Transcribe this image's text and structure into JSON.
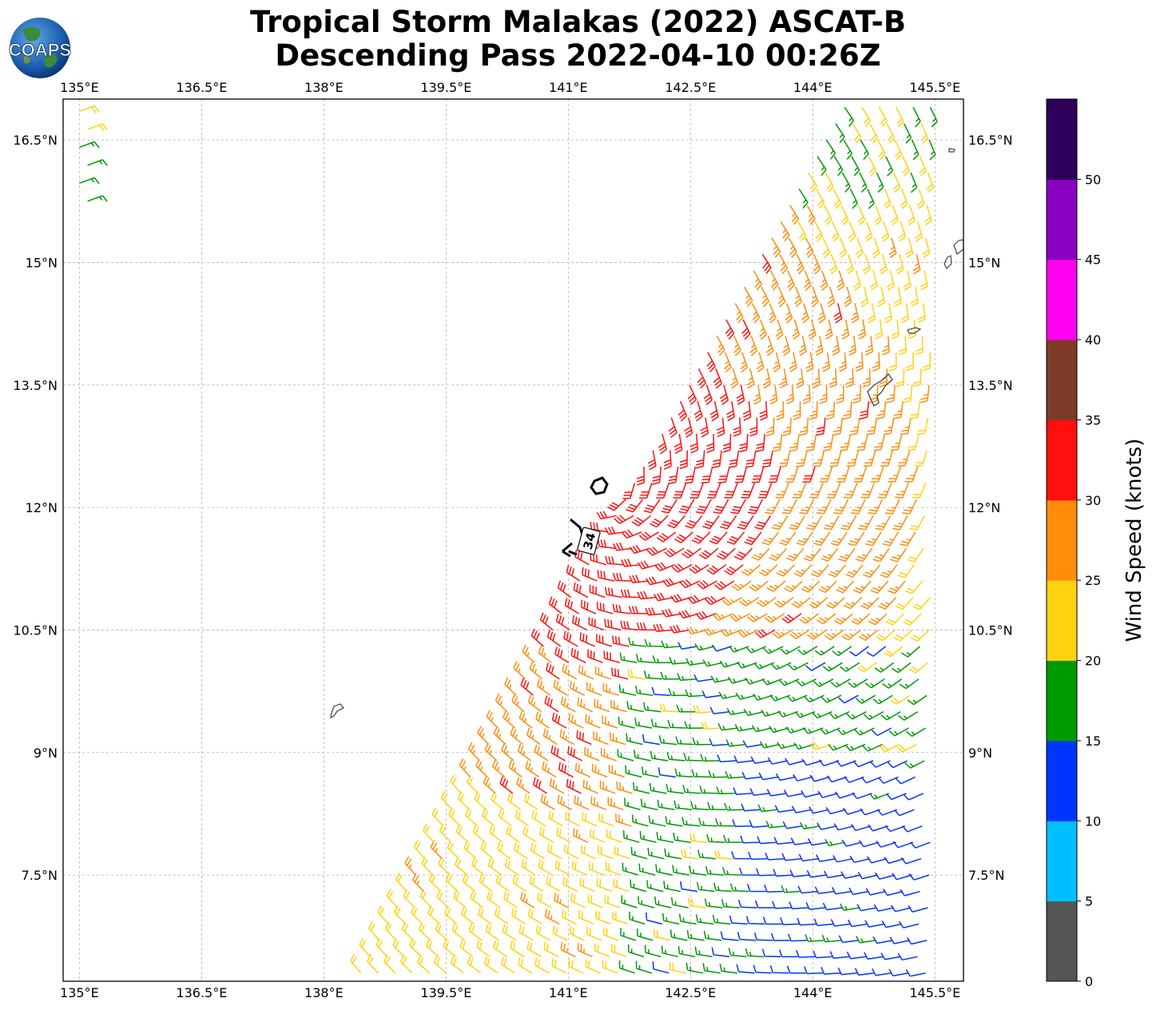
{
  "title": {
    "line1": "Tropical Storm Malakas (2022) ASCAT-B",
    "line2": "Descending Pass 2022-04-10 00:26Z"
  },
  "logo": {
    "text": "COAPS",
    "icon": "globe-logo-icon"
  },
  "map": {
    "lon_range": [
      134.8,
      145.85
    ],
    "lat_range": [
      6.2,
      17.0
    ],
    "lon_ticks": [
      "135°E",
      "136.5°E",
      "138°E",
      "139.5°E",
      "141°E",
      "142.5°E",
      "144°E",
      "145.5°E"
    ],
    "lon_tick_values": [
      135,
      136.5,
      138,
      139.5,
      141,
      142.5,
      144,
      145.5
    ],
    "lat_ticks": [
      "16.5°N",
      "15°N",
      "13.5°N",
      "12°N",
      "10.5°N",
      "9°N",
      "7.5°N"
    ],
    "lat_tick_values": [
      16.5,
      15,
      13.5,
      12,
      10.5,
      9,
      7.5
    ],
    "gridlines": true,
    "storm_center": {
      "lon": 141.35,
      "lat": 12.25
    },
    "wind_radius_label": "34",
    "colors": {
      "land_outline": "#444444",
      "grid": "#b0b0b0",
      "radius": "#000000"
    }
  },
  "colorbar": {
    "label": "Wind Speed (knots)",
    "ticks": [
      "0",
      "5",
      "10",
      "15",
      "20",
      "25",
      "30",
      "35",
      "40",
      "45",
      "50"
    ],
    "bins": [
      {
        "min": 0,
        "max": 5,
        "color": "#555555"
      },
      {
        "min": 5,
        "max": 10,
        "color": "#00bfff"
      },
      {
        "min": 10,
        "max": 15,
        "color": "#0035ff"
      },
      {
        "min": 15,
        "max": 20,
        "color": "#009900"
      },
      {
        "min": 20,
        "max": 25,
        "color": "#ffd20f"
      },
      {
        "min": 25,
        "max": 30,
        "color": "#ff8c0a"
      },
      {
        "min": 30,
        "max": 35,
        "color": "#ff0f0f"
      },
      {
        "min": 35,
        "max": 40,
        "color": "#7f3b2a"
      },
      {
        "min": 40,
        "max": 45,
        "color": "#ff00f0"
      },
      {
        "min": 45,
        "max": 50,
        "color": "#8800c0"
      },
      {
        "min": 50,
        "max": 55,
        "color": "#2c005a"
      }
    ]
  }
}
